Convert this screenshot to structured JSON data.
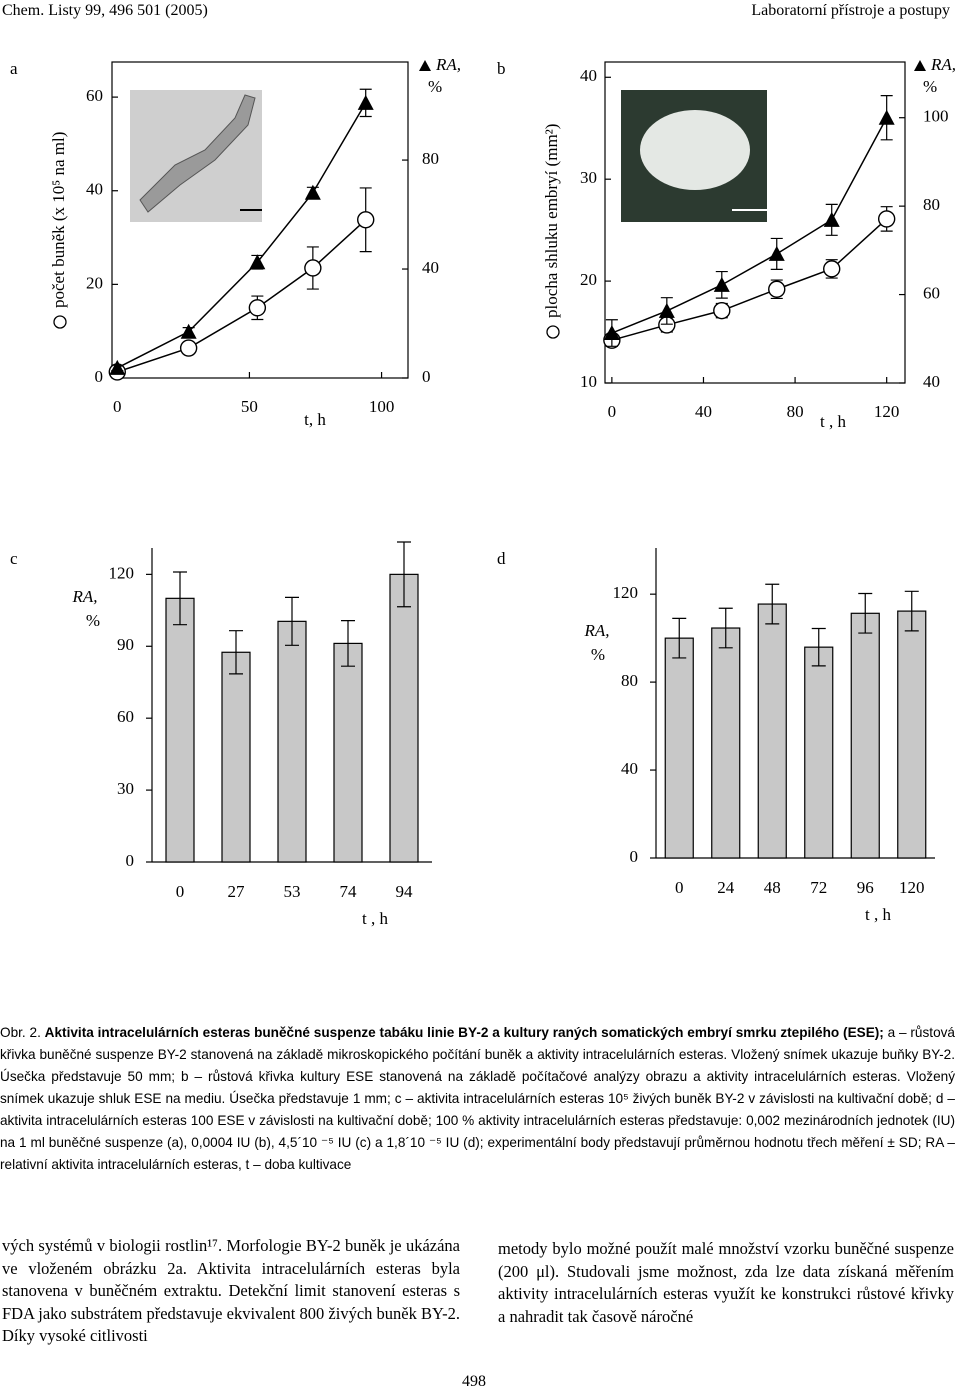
{
  "header": {
    "left": "Chem. Listy 99, 496 501 (2005)",
    "right": "Laboratorní přístroje a postupy"
  },
  "chart_data": [
    {
      "panel": "a",
      "type": "line",
      "x_label": "t, h",
      "y_label": "počet buněk (x 10⁵ na ml)",
      "y2_label": [
        "RA,",
        "%"
      ],
      "x": [
        0,
        27,
        53,
        74,
        94
      ],
      "xlim": [
        -2,
        110
      ],
      "xticks": [
        0,
        50,
        100
      ],
      "ylim": [
        0,
        67.5
      ],
      "yticks": [
        0,
        20,
        40,
        60
      ],
      "y2lim": [
        0,
        116
      ],
      "y2ticks": [
        0,
        40,
        80
      ],
      "series": [
        {
          "marker": "circle",
          "color": "#000000",
          "values": [
            1.3,
            6.4,
            15,
            23.5,
            33.8
          ],
          "errors": [
            0.5,
            0.8,
            2.5,
            4.5,
            6.8
          ]
        },
        {
          "marker": "triangle",
          "axis": "y2",
          "color": "#000000",
          "values": [
            3.7,
            17,
            42.5,
            68,
            101
          ],
          "errors": [
            1,
            1.5,
            2.5,
            2,
            5
          ]
        }
      ]
    },
    {
      "panel": "b",
      "type": "line",
      "x_label": "t , h",
      "y_label": "plocha shluku embryí (mm²)",
      "y2_label": [
        "RA,",
        "%"
      ],
      "x": [
        0,
        24,
        48,
        72,
        96,
        120
      ],
      "xlim": [
        -3,
        128
      ],
      "xticks": [
        0,
        40,
        80,
        120
      ],
      "ylim": [
        10,
        41.5
      ],
      "yticks": [
        10,
        20,
        30,
        40
      ],
      "y2lim": [
        40,
        112.6
      ],
      "y2ticks": [
        40,
        60,
        80,
        100
      ],
      "series": [
        {
          "marker": "circle",
          "color": "#000000",
          "values": [
            14.2,
            15.7,
            17.1,
            19.2,
            21.2,
            26.1
          ],
          "errors": [
            0.5,
            0.7,
            0.7,
            0.9,
            0.9,
            1.2
          ]
        },
        {
          "marker": "triangle",
          "axis": "y2",
          "color": "#000000",
          "values": [
            51.3,
            56.3,
            62.2,
            69.2,
            76.9,
            100
          ],
          "errors": [
            3,
            3,
            3,
            3.5,
            3.5,
            5
          ]
        }
      ]
    },
    {
      "panel": "c",
      "type": "bar",
      "x_label": "t , h",
      "y_label": [
        "RA,",
        "%"
      ],
      "categories": [
        "0",
        "27",
        "53",
        "74",
        "94"
      ],
      "values": [
        110,
        87.5,
        100.4,
        91.2,
        120
      ],
      "errors": [
        11,
        9,
        10,
        9.5,
        13.5
      ],
      "color": "#c8c8c8",
      "ylim": [
        0,
        131
      ],
      "yticks": [
        0,
        30,
        60,
        90,
        120
      ]
    },
    {
      "panel": "d",
      "type": "bar",
      "x_label": "t , h",
      "y_label": [
        "RA,",
        "%"
      ],
      "categories": [
        "0",
        "24",
        "48",
        "72",
        "96",
        "120"
      ],
      "values": [
        100,
        104.6,
        115.5,
        95.9,
        111.3,
        112.3
      ],
      "errors": [
        9,
        9,
        9,
        8.5,
        9,
        9
      ],
      "color": "#c8c8c8",
      "ylim": [
        0,
        141
      ],
      "yticks": [
        0,
        40,
        80,
        120
      ]
    }
  ],
  "caption": {
    "label": "Obr. 2.",
    "bold": "Aktivita intracelulárních esteras buněčné suspenze tabáku linie BY-2 a kultury raných somatických embryí smrku ztepilého (ESE);",
    "text": "a – růstová křivka buněčné suspenze BY-2 stanovená na základě mikroskopického počítání buněk a aktivity intracelulárních esteras. Vložený snímek ukazuje buňky BY-2. Úsečka představuje 50 mm; b – růstová křivka kultury ESE stanovená na základě počítačové analýzy obrazu a aktivity intracelulárních esteras. Vložený snímek ukazuje shluk ESE na mediu. Úsečka představuje 1 mm; c – aktivita intracelulárních esteras 10⁵ živých buněk BY-2 v závislosti na kultivační době; d – aktivita intracelulárních esteras 100 ESE v závislosti na kultivační době; 100 % aktivity intracelulárních esteras představuje: 0,002 mezinárodních jednotek (IU) na 1 ml buněčné suspenze (a), 0,0004 IU (b), 4,5´10 ⁻⁵ IU (c) a 1,8´10 ⁻⁵ IU (d); experimentální body představují průměrnou hodnotu třech měření ± SD; RA – relativní aktivita intracelulárních esteras, t – doba kultivace"
  },
  "body": {
    "left": "vých systémů v biologii rostlin¹⁷. Morfologie BY-2 buněk je ukázána ve vloženém obrázku 2a. Aktivita intracelulárních esteras byla stanovena v buněčném extraktu. Detekční limit stanovení esteras s FDA jako substrátem představuje ekvivalent 800 živých buněk BY-2. Díky vysoké citlivosti",
    "right": "metody bylo možné použít malé množství vzorku buněčné suspenze (200 μl). Studovali jsme možnost, zda lze data získaná měřením aktivity intracelulárních esteras využít ke konstrukci růstové křivky a nahradit tak časově náročné"
  },
  "page_number": "498"
}
